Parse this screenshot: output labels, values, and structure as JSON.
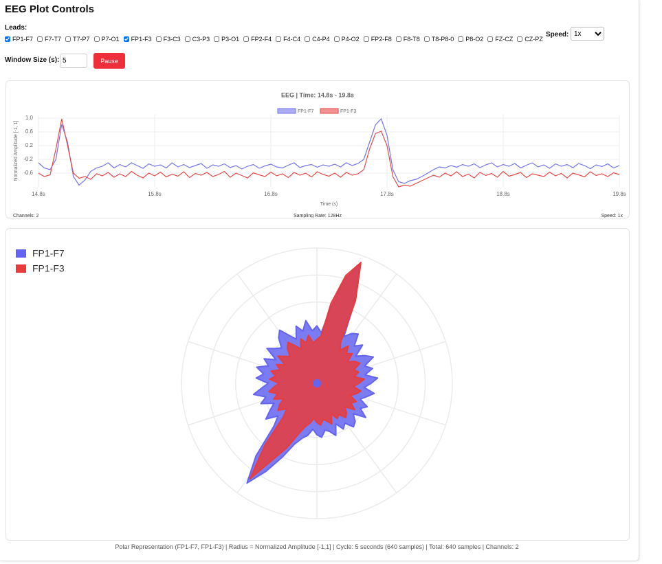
{
  "header": {
    "title": "EEG Plot Controls"
  },
  "controls": {
    "leads_label": "Leads:",
    "leads": [
      {
        "label": "FP1-F7",
        "checked": true
      },
      {
        "label": "F7-T7",
        "checked": false
      },
      {
        "label": "T7-P7",
        "checked": false
      },
      {
        "label": "P7-O1",
        "checked": false
      },
      {
        "label": "FP1-F3",
        "checked": true
      },
      {
        "label": "F3-C3",
        "checked": false
      },
      {
        "label": "C3-P3",
        "checked": false
      },
      {
        "label": "P3-O1",
        "checked": false
      },
      {
        "label": "FP2-F4",
        "checked": false
      },
      {
        "label": "F4-C4",
        "checked": false
      },
      {
        "label": "C4-P4",
        "checked": false
      },
      {
        "label": "P4-O2",
        "checked": false
      },
      {
        "label": "FP2-F8",
        "checked": false
      },
      {
        "label": "F8-T8",
        "checked": false
      },
      {
        "label": "T8-P8-0",
        "checked": false
      },
      {
        "label": "P8-O2",
        "checked": false
      },
      {
        "label": "FZ-CZ",
        "checked": false
      },
      {
        "label": "CZ-PZ",
        "checked": false
      }
    ],
    "speed_label": "Speed:",
    "speed": "1x",
    "window_label": "Window Size (s):",
    "window_value": 5,
    "pause": "Pause"
  },
  "chart_data": [
    {
      "type": "line",
      "title": "EEG | Time: 14.8s - 19.8s",
      "y_label": "Normalized Amplitude [-1, 1]",
      "x_label": "Time (s)",
      "xlim": [
        14.8,
        19.8
      ],
      "ylim": [
        -1,
        1.1
      ],
      "xticks": [
        {
          "value": 14.8,
          "label": "14.8s"
        },
        {
          "value": 15.8,
          "label": "15.8s"
        },
        {
          "value": 16.8,
          "label": "16.8s"
        },
        {
          "value": 17.8,
          "label": "17.8s"
        },
        {
          "value": 18.8,
          "label": "18.8s"
        },
        {
          "value": 19.8,
          "label": "19.8s"
        }
      ],
      "yticks": [
        {
          "value": 1,
          "label": "1.0"
        },
        0.6,
        0.2,
        -0.2,
        -0.6
      ],
      "grid": true,
      "legend": "top",
      "x": [
        14.8,
        14.85,
        14.9,
        14.95,
        15,
        15.05,
        15.1,
        15.15,
        15.2,
        15.25,
        15.3,
        15.35,
        15.4,
        15.45,
        15.5,
        15.55,
        15.6,
        15.65,
        15.7,
        15.75,
        15.8,
        15.85,
        15.9,
        15.95,
        16,
        16.05,
        16.1,
        16.15,
        16.2,
        16.25,
        16.3,
        16.35,
        16.4,
        16.45,
        16.5,
        16.55,
        16.6,
        16.65,
        16.7,
        16.75,
        16.8,
        16.85,
        16.9,
        16.95,
        17,
        17.05,
        17.1,
        17.15,
        17.2,
        17.25,
        17.3,
        17.35,
        17.4,
        17.45,
        17.5,
        17.55,
        17.6,
        17.65,
        17.7,
        17.75,
        17.8,
        17.85,
        17.9,
        17.95,
        18,
        18.05,
        18.1,
        18.15,
        18.2,
        18.25,
        18.3,
        18.35,
        18.4,
        18.45,
        18.5,
        18.55,
        18.6,
        18.65,
        18.7,
        18.75,
        18.8,
        18.85,
        18.9,
        18.95,
        19,
        19.05,
        19.1,
        19.15,
        19.2,
        19.25,
        19.3,
        19.35,
        19.4,
        19.45,
        19.5,
        19.55,
        19.6,
        19.65,
        19.7,
        19.75,
        19.8
      ],
      "series": [
        {
          "name": "FP1-F7",
          "color": "#7474ec",
          "values": [
            -0.3,
            -0.45,
            -0.5,
            -0.2,
            0.82,
            0.3,
            -0.7,
            -0.95,
            -0.8,
            -0.55,
            -0.45,
            -0.4,
            -0.3,
            -0.45,
            -0.35,
            -0.42,
            -0.3,
            -0.38,
            -0.46,
            -0.33,
            -0.4,
            -0.36,
            -0.45,
            -0.3,
            -0.42,
            -0.35,
            -0.44,
            -0.38,
            -0.32,
            -0.46,
            -0.36,
            -0.4,
            -0.33,
            -0.44,
            -0.38,
            -0.48,
            -0.4,
            -0.35,
            -0.46,
            -0.39,
            -0.34,
            -0.42,
            -0.45,
            -0.37,
            -0.3,
            -0.44,
            -0.38,
            -0.35,
            -0.43,
            -0.36,
            -0.4,
            -0.34,
            -0.42,
            -0.3,
            -0.38,
            -0.32,
            -0.2,
            0.3,
            0.8,
            0.98,
            0.5,
            -0.5,
            -0.85,
            -0.9,
            -0.82,
            -0.78,
            -0.7,
            -0.6,
            -0.5,
            -0.42,
            -0.45,
            -0.38,
            -0.43,
            -0.35,
            -0.4,
            -0.33,
            -0.44,
            -0.36,
            -0.3,
            -0.42,
            -0.35,
            -0.4,
            -0.32,
            -0.45,
            -0.37,
            -0.3,
            -0.42,
            -0.36,
            -0.46,
            -0.33,
            -0.4,
            -0.35,
            -0.44,
            -0.32,
            -0.38,
            -0.47,
            -0.36,
            -0.41,
            -0.33,
            -0.45,
            -0.38
          ]
        },
        {
          "name": "FP1-F3",
          "color": "#e84848",
          "values": [
            -0.6,
            -0.7,
            -0.65,
            0.1,
            0.98,
            0.2,
            -0.6,
            -0.75,
            -0.7,
            -0.78,
            -0.62,
            -0.68,
            -0.58,
            -0.72,
            -0.62,
            -0.7,
            -0.55,
            -0.66,
            -0.74,
            -0.6,
            -0.68,
            -0.57,
            -0.71,
            -0.63,
            -0.69,
            -0.56,
            -0.73,
            -0.61,
            -0.66,
            -0.58,
            -0.7,
            -0.64,
            -0.55,
            -0.72,
            -0.6,
            -0.67,
            -0.74,
            -0.59,
            -0.65,
            -0.7,
            -0.57,
            -0.68,
            -0.62,
            -0.73,
            -0.58,
            -0.66,
            -0.6,
            -0.71,
            -0.56,
            -0.64,
            -0.69,
            -0.6,
            -0.72,
            -0.58,
            -0.66,
            -0.62,
            -0.5,
            0.1,
            0.55,
            0.62,
            0.2,
            -0.7,
            -1,
            -0.95,
            -0.98,
            -0.9,
            -0.82,
            -0.74,
            -0.66,
            -0.72,
            -0.6,
            -0.68,
            -0.56,
            -0.7,
            -0.63,
            -0.74,
            -0.58,
            -0.67,
            -0.61,
            -0.72,
            -0.55,
            -0.69,
            -0.64,
            -0.58,
            -0.73,
            -0.62,
            -0.66,
            -0.7,
            -0.57,
            -0.68,
            -0.61,
            -0.74,
            -0.6,
            -0.65,
            -0.71,
            -0.56,
            -0.67,
            -0.62,
            -0.7,
            -0.59,
            -0.64
          ]
        }
      ],
      "footer": [
        "Channels: 2",
        "Sampling Rate: 128Hz",
        "Speed: 1x"
      ]
    },
    {
      "type": "polar",
      "rlim": [
        -1,
        1
      ],
      "rticks": [
        -0.6,
        -0.2,
        0.2,
        0.6,
        1
      ],
      "grid": true,
      "legend": "top-left",
      "series": [
        {
          "name": "FP1-F7",
          "color": "#6464f0",
          "values": [
            -0.15,
            -0.25,
            0.1,
            0.6,
            0.86,
            0.3,
            -0.2,
            -0.1,
            -0.05,
            -0.22,
            -0.12,
            -0.3,
            -0.18,
            -0.08,
            -0.25,
            -0.15,
            -0.28,
            -0.1,
            -0.2,
            -0.3,
            -0.14,
            -0.24,
            -0.32,
            -0.18,
            -0.26,
            -0.12,
            -0.3,
            -0.2,
            -0.16,
            -0.28,
            -0.22,
            -0.34,
            -0.18,
            -0.26,
            -0.3,
            -0.2,
            -0.24,
            -0.32,
            -0.22,
            -0.16,
            -0.05,
            0.2,
            0.5,
            0.8,
            0.4,
            -0.1,
            -0.25,
            -0.08,
            -0.2,
            -0.3,
            -0.12,
            -0.22,
            -0.05,
            -0.18,
            -0.28,
            -0.1,
            -0.2,
            -0.08,
            -0.24,
            -0.14,
            -0.3,
            -0.1,
            -0.2,
            -0.26,
            -0.12,
            -0.04,
            -0.18,
            -0.28,
            -0.1,
            -0.2,
            -0.06,
            -0.22
          ]
        },
        {
          "name": "FP1-F3",
          "color": "#e83c3c",
          "values": [
            -0.35,
            -0.3,
            0.2,
            0.65,
            0.9,
            0.35,
            -0.3,
            -0.4,
            -0.28,
            -0.38,
            -0.32,
            -0.45,
            -0.35,
            -0.3,
            -0.42,
            -0.36,
            -0.44,
            -0.3,
            -0.38,
            -0.46,
            -0.34,
            -0.4,
            -0.48,
            -0.36,
            -0.42,
            -0.32,
            -0.46,
            -0.38,
            -0.34,
            -0.44,
            -0.4,
            -0.5,
            -0.36,
            -0.42,
            -0.46,
            -0.38,
            -0.42,
            -0.48,
            -0.4,
            -0.34,
            -0.2,
            0.05,
            0.3,
            0.72,
            0.2,
            -0.3,
            -0.42,
            -0.3,
            -0.36,
            -0.46,
            -0.32,
            -0.4,
            -0.28,
            -0.36,
            -0.44,
            -0.3,
            -0.38,
            -0.3,
            -0.42,
            -0.34,
            -0.46,
            -0.3,
            -0.38,
            -0.44,
            -0.32,
            -0.26,
            -0.36,
            -0.44,
            -0.3,
            -0.38,
            -0.28,
            -0.4
          ]
        }
      ],
      "caption": "Polar Representation (FP1-F7, FP1-F3) | Radius = Normalized Amplitude [-1,1] | Cycle: 5 seconds (640 samples) | Total: 640 samples | Channels: 2"
    }
  ]
}
